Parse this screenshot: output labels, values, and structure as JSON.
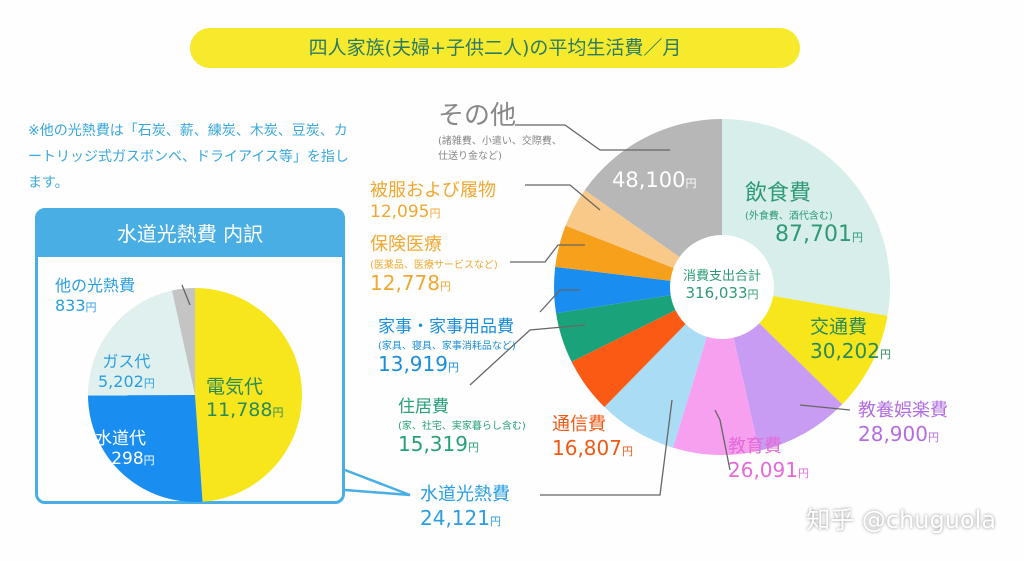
{
  "title": "四人家族(夫婦+子供二人)の平均生活費／月",
  "note": "※他の光熱費は「石炭、薪、練炭、木炭、豆炭、カートリッジ式ガスボンベ、ドライアイス等」を指します。",
  "yen": "円",
  "watermark": "知乎 @chuguola",
  "chart_data": [
    {
      "type": "pie",
      "title": "四人家族(夫婦+子供二人)の平均生活費／月",
      "donut": true,
      "center_label": "消費支出合計",
      "center_value": "316,033",
      "slices": [
        {
          "name": "飲食費",
          "note": "(外食費、酒代含む)",
          "value": 87701,
          "label": "87,701",
          "color": "#d8eeea",
          "text_color": "#2e9a78"
        },
        {
          "name": "交通費",
          "note": "",
          "value": 30202,
          "label": "30,202",
          "color": "#f8e61c",
          "text_color": "#2a8a5a"
        },
        {
          "name": "教養娯楽費",
          "note": "",
          "value": 28900,
          "label": "28,900",
          "color": "#c89cf2",
          "text_color": "#b26ee0"
        },
        {
          "name": "教育費",
          "note": "",
          "value": 26091,
          "label": "26,091",
          "color": "#f7a0ef",
          "text_color": "#e46ad8"
        },
        {
          "name": "水道光熱費",
          "note": "",
          "value": 24121,
          "label": "24,121",
          "color": "#abdcf5",
          "text_color": "#2a9ee0"
        },
        {
          "name": "通信費",
          "note": "",
          "value": 16807,
          "label": "16,807",
          "color": "#fa5a14",
          "text_color": "#f05a14"
        },
        {
          "name": "住居費",
          "note": "(家、社宅、実家暮らし含む)",
          "value": 15319,
          "label": "15,319",
          "color": "#1aa37a",
          "text_color": "#27a07a"
        },
        {
          "name": "家事・家事用品費",
          "note": "(家具、寝具、家事消耗品など)",
          "value": 13919,
          "label": "13,919",
          "color": "#1a8ef0",
          "text_color": "#1a8ed8"
        },
        {
          "name": "保険医療",
          "note": "(医薬品、医療サービスなど)",
          "value": 12778,
          "label": "12,778",
          "color": "#f7a01c",
          "text_color": "#f0a830"
        },
        {
          "name": "被服および履物",
          "note": "",
          "value": 12095,
          "label": "12,095",
          "color": "#f9c98a",
          "text_color": "#f0a830"
        },
        {
          "name": "その他",
          "note": "(諸雑費、小遣い、交際費、仕送り金など)",
          "value": 48100,
          "label": "48,100",
          "color": "#b7b7b7",
          "text_color": "#888888"
        }
      ]
    },
    {
      "type": "pie",
      "title": "水道光熱費 内訳",
      "slices": [
        {
          "name": "電気代",
          "value": 11788,
          "label": "11,788",
          "color": "#f8e61c",
          "text_color": "#2a8a5a"
        },
        {
          "name": "水道代",
          "value": 6298,
          "label": "6,298",
          "color": "#1a8ef0",
          "text_color": "#ffffff"
        },
        {
          "name": "ガス代",
          "value": 5202,
          "label": "5,202",
          "color": "#dff0ee",
          "text_color": "#2a9ee0"
        },
        {
          "name": "他の光熱費",
          "value": 833,
          "label": "833",
          "color": "#c4c4c4",
          "text_color": "#2a9ee0"
        }
      ]
    }
  ]
}
